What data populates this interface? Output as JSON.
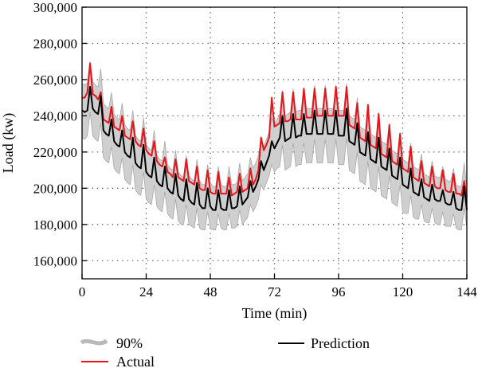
{
  "chart_data": {
    "type": "line",
    "title": "",
    "xlabel": "Time (min)",
    "ylabel": "Load (kw)",
    "xlim": [
      0,
      144
    ],
    "ylim": [
      150000,
      300000
    ],
    "xticks": [
      0,
      24,
      48,
      72,
      96,
      120,
      144
    ],
    "xtick_labels": [
      "0",
      "24",
      "48",
      "72",
      "96",
      "120",
      "144"
    ],
    "yticks": [
      160000,
      180000,
      200000,
      220000,
      240000,
      260000,
      280000,
      300000
    ],
    "ytick_labels": [
      "160,000",
      "180,000",
      "200,000",
      "220,000",
      "240,000",
      "260,000",
      "280,000",
      "300,000"
    ],
    "grid": true,
    "legend_position": "bottom",
    "colors": {
      "actual": "#e8141a",
      "prediction": "#000000",
      "band": "#cfcfcf",
      "band_edge": "#a8a8a8"
    },
    "series": [
      {
        "name": "Actual",
        "x": [
          0,
          1,
          2,
          3,
          4,
          5,
          6,
          7,
          8,
          9,
          10,
          11,
          12,
          13,
          14,
          15,
          16,
          17,
          18,
          19,
          20,
          21,
          22,
          23,
          24,
          25,
          26,
          27,
          28,
          29,
          30,
          31,
          32,
          33,
          34,
          35,
          36,
          37,
          38,
          39,
          40,
          41,
          42,
          43,
          44,
          45,
          46,
          47,
          48,
          49,
          50,
          51,
          52,
          53,
          54,
          55,
          56,
          57,
          58,
          59,
          60,
          61,
          62,
          63,
          64,
          65,
          66,
          67,
          68,
          69,
          70,
          71,
          72,
          73,
          74,
          75,
          76,
          77,
          78,
          79,
          80,
          81,
          82,
          83,
          84,
          85,
          86,
          87,
          88,
          89,
          90,
          91,
          92,
          93,
          94,
          95,
          96,
          97,
          98,
          99,
          100,
          101,
          102,
          103,
          104,
          105,
          106,
          107,
          108,
          109,
          110,
          111,
          112,
          113,
          114,
          115,
          116,
          117,
          118,
          119,
          120,
          121,
          122,
          123,
          124,
          125,
          126,
          127,
          128,
          129,
          130,
          131,
          132,
          133,
          134,
          135,
          136,
          137,
          138,
          139,
          140,
          141,
          142,
          143,
          144
        ],
        "values": [
          250000,
          250000,
          253000,
          269000,
          252000,
          251000,
          249000,
          253000,
          238000,
          237000,
          236000,
          245000,
          234000,
          233000,
          232000,
          240000,
          229000,
          228000,
          227000,
          237000,
          226000,
          224000,
          223000,
          233000,
          221000,
          219000,
          218000,
          226000,
          215000,
          213000,
          212000,
          217000,
          209000,
          208000,
          206000,
          216000,
          206000,
          205000,
          204000,
          216000,
          204000,
          203000,
          202000,
          212000,
          200000,
          199000,
          199000,
          210000,
          198000,
          197000,
          197000,
          209000,
          197000,
          197000,
          197000,
          206000,
          196000,
          197000,
          198000,
          208000,
          198000,
          199000,
          200000,
          211000,
          202000,
          205000,
          210000,
          228000,
          221000,
          224000,
          228000,
          250000,
          234000,
          235000,
          236000,
          253000,
          237000,
          237000,
          238000,
          253000,
          238000,
          238000,
          238000,
          255000,
          239000,
          239000,
          239000,
          255000,
          240000,
          240000,
          240000,
          255000,
          240000,
          240000,
          240000,
          256000,
          240000,
          240000,
          240000,
          256000,
          235000,
          234000,
          233000,
          247000,
          228000,
          227000,
          226000,
          246000,
          224000,
          223000,
          222000,
          241000,
          219000,
          218000,
          217000,
          235000,
          215000,
          214000,
          213000,
          230000,
          211000,
          210000,
          209000,
          223000,
          206000,
          205000,
          204000,
          215000,
          203000,
          202000,
          201000,
          212000,
          201000,
          200000,
          200000,
          210000,
          199000,
          198000,
          198000,
          208000,
          197000,
          197000,
          196000,
          204000,
          195000
        ]
      },
      {
        "name": "Prediction",
        "x": [
          0,
          1,
          2,
          3,
          4,
          5,
          6,
          7,
          8,
          9,
          10,
          11,
          12,
          13,
          14,
          15,
          16,
          17,
          18,
          19,
          20,
          21,
          22,
          23,
          24,
          25,
          26,
          27,
          28,
          29,
          30,
          31,
          32,
          33,
          34,
          35,
          36,
          37,
          38,
          39,
          40,
          41,
          42,
          43,
          44,
          45,
          46,
          47,
          48,
          49,
          50,
          51,
          52,
          53,
          54,
          55,
          56,
          57,
          58,
          59,
          60,
          61,
          62,
          63,
          64,
          65,
          66,
          67,
          68,
          69,
          70,
          71,
          72,
          73,
          74,
          75,
          76,
          77,
          78,
          79,
          80,
          81,
          82,
          83,
          84,
          85,
          86,
          87,
          88,
          89,
          90,
          91,
          92,
          93,
          94,
          95,
          96,
          97,
          98,
          99,
          100,
          101,
          102,
          103,
          104,
          105,
          106,
          107,
          108,
          109,
          110,
          111,
          112,
          113,
          114,
          115,
          116,
          117,
          118,
          119,
          120,
          121,
          122,
          123,
          124,
          125,
          126,
          127,
          128,
          129,
          130,
          131,
          132,
          133,
          134,
          135,
          136,
          137,
          138,
          139,
          140,
          141,
          142,
          143,
          144
        ],
        "values": [
          243000,
          242000,
          243000,
          256000,
          244000,
          242000,
          241000,
          251000,
          232000,
          230000,
          229000,
          238000,
          226000,
          224000,
          223000,
          232000,
          220000,
          218000,
          217000,
          228000,
          214000,
          212000,
          211000,
          224000,
          209000,
          207000,
          206000,
          217000,
          204000,
          202000,
          201000,
          212000,
          200000,
          198000,
          197000,
          208000,
          196000,
          194000,
          193000,
          205000,
          194000,
          192000,
          191000,
          203000,
          191000,
          189000,
          189000,
          200000,
          190000,
          188000,
          188000,
          199000,
          189000,
          188000,
          188000,
          199000,
          189000,
          189000,
          190000,
          201000,
          191000,
          193000,
          195000,
          204000,
          198000,
          201000,
          205000,
          215000,
          210000,
          214000,
          218000,
          226000,
          222000,
          225000,
          228000,
          240000,
          226000,
          227000,
          228000,
          241000,
          228000,
          229000,
          229000,
          241000,
          230000,
          230000,
          230000,
          243000,
          230000,
          230000,
          230000,
          243000,
          230000,
          230000,
          230000,
          243000,
          229000,
          229000,
          229000,
          244000,
          226000,
          225000,
          224000,
          236000,
          220000,
          219000,
          218000,
          231000,
          216000,
          215000,
          214000,
          228000,
          212000,
          211000,
          210000,
          222000,
          207000,
          206000,
          205000,
          217000,
          202000,
          201000,
          200000,
          211000,
          198000,
          197000,
          196000,
          205000,
          195000,
          194000,
          193000,
          202000,
          194000,
          193000,
          193000,
          199000,
          192000,
          191000,
          191000,
          198000,
          189000,
          188000,
          188000,
          201000,
          188000
        ]
      },
      {
        "name": "90%",
        "type": "band",
        "x": [
          0,
          1,
          2,
          3,
          4,
          5,
          6,
          7,
          8,
          9,
          10,
          11,
          12,
          13,
          14,
          15,
          16,
          17,
          18,
          19,
          20,
          21,
          22,
          23,
          24,
          25,
          26,
          27,
          28,
          29,
          30,
          31,
          32,
          33,
          34,
          35,
          36,
          37,
          38,
          39,
          40,
          41,
          42,
          43,
          44,
          45,
          46,
          47,
          48,
          49,
          50,
          51,
          52,
          53,
          54,
          55,
          56,
          57,
          58,
          59,
          60,
          61,
          62,
          63,
          64,
          65,
          66,
          67,
          68,
          69,
          70,
          71,
          72,
          73,
          74,
          75,
          76,
          77,
          78,
          79,
          80,
          81,
          82,
          83,
          84,
          85,
          86,
          87,
          88,
          89,
          90,
          91,
          92,
          93,
          94,
          95,
          96,
          97,
          98,
          99,
          100,
          101,
          102,
          103,
          104,
          105,
          106,
          107,
          108,
          109,
          110,
          111,
          112,
          113,
          114,
          115,
          116,
          117,
          118,
          119,
          120,
          121,
          122,
          123,
          124,
          125,
          126,
          127,
          128,
          129,
          130,
          131,
          132,
          133,
          134,
          135,
          136,
          137,
          138,
          139,
          140,
          141,
          142,
          143,
          144
        ],
        "lower": [
          228000,
          227000,
          229000,
          242000,
          229000,
          227000,
          226000,
          236000,
          217000,
          215000,
          214000,
          223000,
          211000,
          209000,
          208000,
          217000,
          205000,
          203000,
          202000,
          213000,
          199000,
          197000,
          196000,
          209000,
          194000,
          192000,
          191000,
          202000,
          190000,
          188000,
          187000,
          198000,
          186000,
          184000,
          183000,
          194000,
          182000,
          180000,
          180000,
          191000,
          180000,
          179000,
          178000,
          189000,
          178000,
          177000,
          177000,
          187000,
          178000,
          177000,
          177000,
          186000,
          178000,
          177000,
          177000,
          186000,
          178000,
          178000,
          179000,
          188000,
          180000,
          182000,
          184000,
          191000,
          187000,
          190000,
          194000,
          202000,
          199000,
          203000,
          207000,
          213000,
          209000,
          211000,
          212000,
          224000,
          210000,
          211000,
          212000,
          225000,
          212000,
          213000,
          213000,
          225000,
          214000,
          214000,
          214000,
          227000,
          214000,
          214000,
          214000,
          227000,
          214000,
          214000,
          214000,
          227000,
          213000,
          213000,
          213000,
          228000,
          210000,
          209000,
          208000,
          220000,
          204000,
          203000,
          202000,
          215000,
          200000,
          199000,
          198000,
          212000,
          196000,
          195000,
          194000,
          207000,
          192000,
          191000,
          190000,
          202000,
          187000,
          186000,
          186000,
          196000,
          184000,
          183000,
          183000,
          191000,
          182000,
          181000,
          181000,
          189000,
          181000,
          180000,
          180000,
          187000,
          179000,
          179000,
          179000,
          186000,
          178000,
          177000,
          177000,
          189000,
          178000
        ],
        "upper": [
          258000,
          257000,
          258000,
          270000,
          259000,
          257000,
          256000,
          266000,
          247000,
          245000,
          244000,
          253000,
          241000,
          239000,
          238000,
          247000,
          235000,
          233000,
          232000,
          243000,
          229000,
          227000,
          226000,
          239000,
          224000,
          222000,
          221000,
          232000,
          218000,
          216000,
          215000,
          226000,
          213000,
          211000,
          210000,
          221000,
          209000,
          207000,
          206000,
          218000,
          207000,
          205000,
          204000,
          216000,
          204000,
          202000,
          202000,
          213000,
          203000,
          201000,
          201000,
          212000,
          202000,
          201000,
          201000,
          212000,
          202000,
          202000,
          203000,
          214000,
          204000,
          206000,
          208000,
          217000,
          211000,
          214000,
          218000,
          228000,
          223000,
          227000,
          231000,
          239000,
          235000,
          238000,
          241000,
          254000,
          240000,
          241000,
          242000,
          255000,
          242000,
          243000,
          243000,
          255000,
          244000,
          244000,
          244000,
          257000,
          244000,
          244000,
          244000,
          257000,
          244000,
          244000,
          244000,
          257000,
          243000,
          243000,
          243000,
          258000,
          240000,
          239000,
          238000,
          250000,
          234000,
          233000,
          232000,
          245000,
          230000,
          229000,
          228000,
          242000,
          226000,
          225000,
          224000,
          236000,
          221000,
          220000,
          219000,
          231000,
          216000,
          215000,
          214000,
          225000,
          212000,
          211000,
          210000,
          219000,
          208000,
          207000,
          206000,
          215000,
          207000,
          206000,
          206000,
          212000,
          205000,
          204000,
          204000,
          211000,
          202000,
          201000,
          201000,
          214000,
          200000
        ]
      }
    ],
    "legend": [
      {
        "label": "90%",
        "marker": "band"
      },
      {
        "label": "Actual",
        "marker": "actual-line"
      },
      {
        "label": "Prediction",
        "marker": "prediction-line"
      }
    ]
  }
}
